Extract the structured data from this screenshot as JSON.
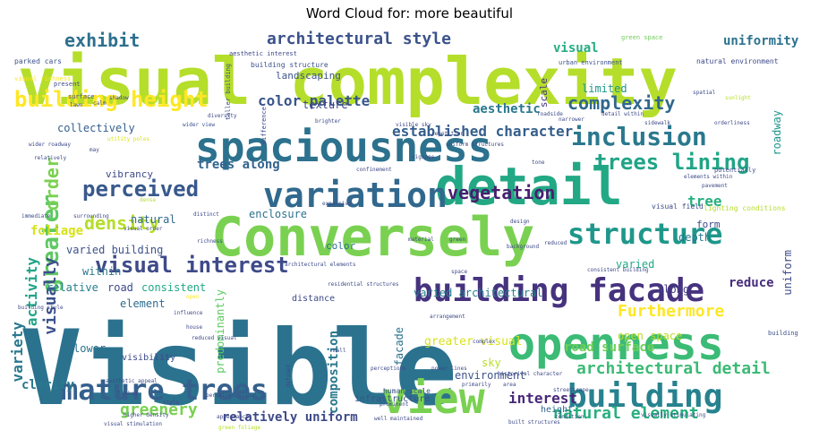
{
  "title": "Word Cloud for: more beautiful",
  "words": [
    {
      "text": "Visible",
      "color": "#2b728e"
    },
    {
      "text": "visual complexity",
      "color": "#b5de2b"
    },
    {
      "text": "Conversely",
      "color": "#7ad151"
    },
    {
      "text": "spaciousness",
      "color": "#2c728e"
    },
    {
      "text": "detail",
      "color": "#22a884"
    },
    {
      "text": "openness",
      "color": "#3bbb75"
    },
    {
      "text": "building facade",
      "color": "#46327e"
    },
    {
      "text": "view",
      "color": "#7ad151"
    },
    {
      "text": "building",
      "color": "#26828e"
    },
    {
      "text": "variation",
      "color": "#31688e"
    },
    {
      "text": "mature trees",
      "color": "#35608d"
    },
    {
      "text": "structure",
      "color": "#1f978b"
    },
    {
      "text": "inclusion",
      "color": "#2a788e"
    },
    {
      "text": "building height",
      "color": "#fde725"
    },
    {
      "text": "visual interest",
      "color": "#3e4a89"
    },
    {
      "text": "perceived",
      "color": "#38598c"
    },
    {
      "text": "greater",
      "color": "#5ec962"
    },
    {
      "text": "architectural style",
      "color": "#3b528b"
    },
    {
      "text": "exhibit",
      "color": "#2d708e"
    },
    {
      "text": "trees lining",
      "color": "#20a486"
    },
    {
      "text": "vegetation",
      "color": "#481f70"
    },
    {
      "text": "complexity",
      "color": "#31688e"
    },
    {
      "text": "density",
      "color": "#b5de2b"
    },
    {
      "text": "Furthermore",
      "color": "#fde725"
    },
    {
      "text": "greenery",
      "color": "#7ad151"
    },
    {
      "text": "architectural detail",
      "color": "#3bbb75"
    },
    {
      "text": "natural element",
      "color": "#29af7f"
    },
    {
      "text": "interest",
      "color": "#482878"
    },
    {
      "text": "visually",
      "color": "#3b528b"
    },
    {
      "text": "uniformity",
      "color": "#2c728e"
    },
    {
      "text": "color palette",
      "color": "#39568c"
    },
    {
      "text": "order",
      "color": "#7ad151"
    },
    {
      "text": "activity",
      "color": "#20a486"
    },
    {
      "text": "variety",
      "color": "#2a788e"
    },
    {
      "text": "road surface",
      "color": "#6ece58"
    },
    {
      "text": "relatively uniform",
      "color": "#3e4a89"
    },
    {
      "text": "composition",
      "color": "#2a788e"
    },
    {
      "text": "trees along",
      "color": "#32648e"
    },
    {
      "text": "established character",
      "color": "#355f8d"
    },
    {
      "text": "aesthetic",
      "color": "#2a788e"
    },
    {
      "text": "visual",
      "color": "#25ac82"
    },
    {
      "text": "limited",
      "color": "#1f968b"
    },
    {
      "text": "collectively",
      "color": "#35608d"
    },
    {
      "text": "enclosure",
      "color": "#2c728e"
    },
    {
      "text": "varied architectural",
      "color": "#26818e"
    },
    {
      "text": "varied building",
      "color": "#3b528b"
    },
    {
      "text": "reduce",
      "color": "#472d7b"
    },
    {
      "text": "open space",
      "color": "#b5de2b"
    },
    {
      "text": "varied",
      "color": "#22a884"
    },
    {
      "text": "along",
      "color": "#433e85"
    },
    {
      "text": "within",
      "color": "#2a788e"
    },
    {
      "text": "road",
      "color": "#3e4a89"
    },
    {
      "text": "relative",
      "color": "#277f8e"
    },
    {
      "text": "consistent",
      "color": "#22a884"
    },
    {
      "text": "element",
      "color": "#2f6c8e"
    },
    {
      "text": "foliage",
      "color": "#d8e219"
    },
    {
      "text": "natural",
      "color": "#31688e"
    },
    {
      "text": "texture",
      "color": "#3f4788"
    },
    {
      "text": "landscaping",
      "color": "#3b528b"
    },
    {
      "text": "scale",
      "color": "#46327e"
    },
    {
      "text": "tree",
      "color": "#29af7f"
    },
    {
      "text": "depth",
      "color": "#2a788e"
    },
    {
      "text": "form",
      "color": "#3e4a89"
    },
    {
      "text": "roadway",
      "color": "#1f968b"
    },
    {
      "text": "uniform",
      "color": "#3e4a89"
    },
    {
      "text": "facade",
      "color": "#2c728e"
    },
    {
      "text": "predominantly",
      "color": "#5ec962"
    },
    {
      "text": "environment",
      "color": "#3b528b"
    },
    {
      "text": "lower",
      "color": "#2c728e"
    },
    {
      "text": "clarity",
      "color": "#2a788e"
    },
    {
      "text": "sky",
      "color": "#b5de2b"
    },
    {
      "text": "greater visual",
      "color": "#d8e219"
    },
    {
      "text": "vibrancy",
      "color": "#3e4a89"
    },
    {
      "text": "color",
      "color": "#2c728e"
    },
    {
      "text": "distance",
      "color": "#3e4a89"
    },
    {
      "text": "visibility",
      "color": "#3e4a89"
    },
    {
      "text": "infrastructure",
      "color": "#3b528b"
    },
    {
      "text": "height",
      "color": "#31688e"
    },
    {
      "text": "human scale",
      "color": "#3b528b"
    },
    {
      "text": "lighting conditions",
      "color": "#b5de2b"
    },
    {
      "text": "building",
      "color": "#3b528b"
    },
    {
      "text": "parked cars",
      "color": "#3b528b"
    },
    {
      "text": "visual richness",
      "color": "#fde725"
    },
    {
      "text": "green space",
      "color": "#6ece58"
    },
    {
      "text": "building structure",
      "color": "#3b528b"
    },
    {
      "text": "aesthetic interest",
      "color": "#3e4a89"
    },
    {
      "text": "urban environment",
      "color": "#3b528b"
    },
    {
      "text": "natural environment",
      "color": "#3e4a89"
    },
    {
      "text": "present",
      "color": "#3e4a89"
    },
    {
      "text": "surface",
      "color": "#3e4a89"
    },
    {
      "text": "lawn",
      "color": "#3e4a89"
    },
    {
      "text": "calm",
      "color": "#3e4a89"
    },
    {
      "text": "shadow",
      "color": "#3e4a89"
    },
    {
      "text": "taller building",
      "color": "#3b528b"
    },
    {
      "text": "wider view",
      "color": "#3b528b"
    },
    {
      "text": "diversity",
      "color": "#3e4a89"
    },
    {
      "text": "difference",
      "color": "#3e4a89"
    },
    {
      "text": "brighter",
      "color": "#3e4a89"
    },
    {
      "text": "narrower",
      "color": "#3e4a89"
    },
    {
      "text": "sidewalk",
      "color": "#3e4a89"
    },
    {
      "text": "orderliness",
      "color": "#3e4a89"
    },
    {
      "text": "spatial",
      "color": "#3e4a89"
    },
    {
      "text": "sunlight",
      "color": "#b5de2b"
    },
    {
      "text": "roadside",
      "color": "#3e4a89"
    },
    {
      "text": "detail within",
      "color": "#3e4a89"
    },
    {
      "text": "potentially",
      "color": "#3e4a89"
    },
    {
      "text": "elements within",
      "color": "#3e4a89"
    },
    {
      "text": "pavement",
      "color": "#3e4a89"
    },
    {
      "text": "visual field",
      "color": "#3e4a89"
    },
    {
      "text": "utility poles",
      "color": "#d8e219"
    },
    {
      "text": "may",
      "color": "#3e4a89"
    },
    {
      "text": "wider roadway",
      "color": "#3e4a89"
    },
    {
      "text": "relatively",
      "color": "#3e4a89"
    },
    {
      "text": "visible sky",
      "color": "#3e4a89"
    },
    {
      "text": "repetition",
      "color": "#3e4a89"
    },
    {
      "text": "uniform structures",
      "color": "#3e4a89"
    },
    {
      "text": "signage",
      "color": "#3e4a89"
    },
    {
      "text": "confinement",
      "color": "#3e4a89"
    },
    {
      "text": "tone",
      "color": "#3e4a89"
    },
    {
      "text": "dense",
      "color": "#b5de2b"
    },
    {
      "text": "expansive",
      "color": "#3e4a89"
    },
    {
      "text": "distinct",
      "color": "#3e4a89"
    },
    {
      "text": "visual order",
      "color": "#3e4a89"
    },
    {
      "text": "richness",
      "color": "#3e4a89"
    },
    {
      "text": "surrounding",
      "color": "#3e4a89"
    },
    {
      "text": "immediate",
      "color": "#3e4a89"
    },
    {
      "text": "architectural elements",
      "color": "#3e4a89"
    },
    {
      "text": "residential structures",
      "color": "#3e4a89"
    },
    {
      "text": "consistent building",
      "color": "#3e4a89"
    },
    {
      "text": "material",
      "color": "#3e4a89"
    },
    {
      "text": "green",
      "color": "#3e4a89"
    },
    {
      "text": "background",
      "color": "#3e4a89"
    },
    {
      "text": "reduced",
      "color": "#3e4a89"
    },
    {
      "text": "design",
      "color": "#3e4a89"
    },
    {
      "text": "space",
      "color": "#3e4a89"
    },
    {
      "text": "house",
      "color": "#3e4a89"
    },
    {
      "text": "reduced visual",
      "color": "#3e4a89"
    },
    {
      "text": "mall",
      "color": "#3e4a89"
    },
    {
      "text": "perceptions",
      "color": "#3e4a89"
    },
    {
      "text": "complex",
      "color": "#3e4a89"
    },
    {
      "text": "arrangement",
      "color": "#3e4a89"
    },
    {
      "text": "open",
      "color": "#fde725"
    },
    {
      "text": "linked",
      "color": "#3e4a89"
    },
    {
      "text": "influence",
      "color": "#3e4a89"
    },
    {
      "text": "power lines",
      "color": "#3e4a89"
    },
    {
      "text": "higher density",
      "color": "#3e4a89"
    },
    {
      "text": "appearance",
      "color": "#3e4a89"
    },
    {
      "text": "prominent",
      "color": "#3e4a89"
    },
    {
      "text": "streetscape",
      "color": "#3e4a89"
    },
    {
      "text": "built structures",
      "color": "#3e4a89"
    },
    {
      "text": "condition",
      "color": "#3e4a89"
    },
    {
      "text": "area",
      "color": "#3e4a89"
    },
    {
      "text": "primarily",
      "color": "#3e4a89"
    },
    {
      "text": "historical character",
      "color": "#3e4a89"
    },
    {
      "text": "visual stimulation",
      "color": "#3e4a89"
    },
    {
      "text": "well maintained",
      "color": "#3e4a89"
    },
    {
      "text": "green foliage",
      "color": "#b5de2b"
    },
    {
      "text": "visually stimulating",
      "color": "#3e4a89"
    },
    {
      "text": "building style",
      "color": "#3e4a89"
    },
    {
      "text": "style",
      "color": "#3e4a89"
    },
    {
      "text": "perceived visual",
      "color": "#3e4a89"
    },
    {
      "text": "defined",
      "color": "#3e4a89"
    },
    {
      "text": "aesthetic appeal",
      "color": "#3e4a89"
    }
  ]
}
